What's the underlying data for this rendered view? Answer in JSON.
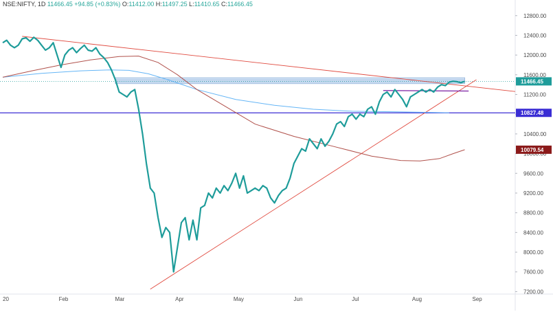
{
  "header": {
    "symbol": "NSE:NIFTY, 1D",
    "last": "11466.45",
    "change": "+94.85 (+0.83%)",
    "o_label": "O:",
    "o_val": "11412.00",
    "h_label": "H:",
    "h_val": "11497.25",
    "l_label": "L:",
    "l_val": "11410.65",
    "c_label": "C:",
    "c_val": "11466.45"
  },
  "colors": {
    "price": "#1e9c9a",
    "ma_long": "#b0504a",
    "ma_mid": "#64b5f6",
    "trend": "#e04a3f",
    "resistance_zone": "#c5dbf3",
    "support_line": "#3a2dd4",
    "purple_line": "#7b1fa2",
    "label_last": "#1e9c9a",
    "label_support": "#3a2dd4",
    "label_ma": "#8b1a1a"
  },
  "chart_data": {
    "type": "line",
    "title": "",
    "xlabel": "",
    "ylabel": "",
    "x_tick_labels": [
      "20",
      "Feb",
      "Mar",
      "Apr",
      "May",
      "Jun",
      "Jul",
      "Aug",
      "Sep"
    ],
    "x_tick_days": [
      0,
      31,
      60,
      91,
      121,
      152,
      182,
      213,
      244
    ],
    "y_tick_labels": [
      "12800.00",
      "12400.00",
      "12000.00",
      "11600.00",
      "11200.00",
      "10800.00",
      "10400.00",
      "10000.00",
      "9600.00",
      "9200.00",
      "8800.00",
      "8400.00",
      "8000.00",
      "7600.00",
      "7200.00"
    ],
    "ylim": [
      7150,
      12950
    ],
    "xlim_days": [
      0,
      264
    ],
    "series": [
      {
        "kind": "price",
        "x_days": [
          0,
          2,
          4,
          6,
          8,
          10,
          12,
          14,
          16,
          18,
          20,
          22,
          24,
          26,
          28,
          30,
          32,
          34,
          36,
          38,
          40,
          42,
          44,
          46,
          48,
          50,
          52,
          54,
          56,
          58,
          60,
          62,
          64,
          66,
          68,
          70,
          72,
          74,
          76,
          78,
          80,
          82,
          84,
          86,
          88,
          90,
          92,
          94,
          96,
          98,
          100,
          102,
          104,
          106,
          108,
          110,
          112,
          114,
          116,
          118,
          120,
          122,
          124,
          126,
          128,
          130,
          132,
          134,
          136,
          138,
          140,
          142,
          144,
          146,
          148,
          150,
          152,
          154,
          156,
          158,
          160,
          162,
          164,
          166,
          168,
          170,
          172,
          174,
          176,
          178,
          180,
          182,
          184,
          186,
          188,
          190,
          192,
          194,
          196,
          198,
          200,
          202,
          204,
          206,
          208,
          210,
          212,
          214,
          216,
          218,
          220,
          222,
          224,
          226,
          228,
          230,
          232,
          234,
          236,
          238
        ],
        "values": [
          12250,
          12300,
          12200,
          12150,
          12200,
          12330,
          12350,
          12280,
          12360,
          12300,
          12200,
          12100,
          12150,
          12250,
          12000,
          11750,
          12000,
          12100,
          12150,
          12050,
          12130,
          12200,
          12100,
          12080,
          12150,
          12020,
          11950,
          11850,
          11700,
          11500,
          11250,
          11200,
          11150,
          11250,
          11300,
          10900,
          10400,
          9800,
          9300,
          9200,
          8700,
          8300,
          8500,
          8400,
          7600,
          8100,
          8600,
          8700,
          8250,
          8650,
          8250,
          8900,
          8950,
          9200,
          9100,
          9300,
          9200,
          9350,
          9250,
          9400,
          9600,
          9300,
          9550,
          9200,
          9250,
          9300,
          9250,
          9350,
          9300,
          9100,
          9000,
          9150,
          9250,
          9300,
          9500,
          9800,
          9950,
          10100,
          10050,
          10300,
          10200,
          10100,
          10300,
          10150,
          10250,
          10400,
          10600,
          10650,
          10550,
          10750,
          10800,
          10700,
          10800,
          10750,
          10900,
          10950,
          10800,
          11050,
          11200,
          11250,
          11150,
          11300,
          11200,
          11100,
          10950,
          11150,
          11200,
          11250,
          11300,
          11250,
          11300,
          11250,
          11350,
          11400,
          11380,
          11450,
          11470,
          11460,
          11440,
          11466
        ]
      }
    ],
    "reference_levels": [
      {
        "label": "11466.45",
        "value": 11466.45
      },
      {
        "label": "10827.48",
        "value": 10827.48
      },
      {
        "label": "10079.54",
        "value": 10079.54
      }
    ]
  }
}
